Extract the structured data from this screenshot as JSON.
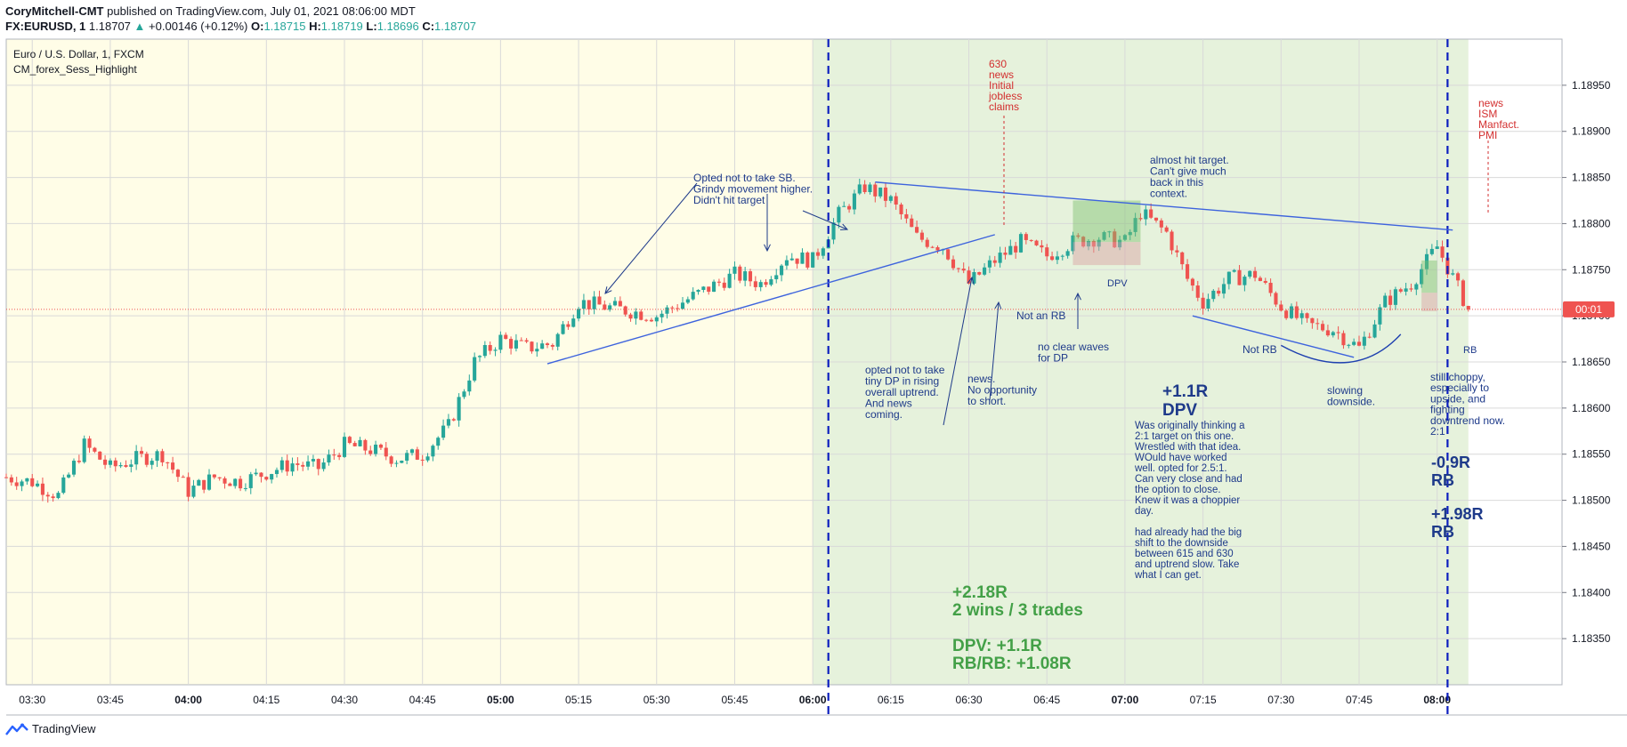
{
  "header": {
    "publisher": "CoryMitchell-CMT",
    "published_text": "published on TradingView.com, July 01, 2021 08:06:00 MDT",
    "symbol": "FX:EURUSD, 1",
    "last": "1.18707",
    "change": "+0.00146 (+0.12%)",
    "o_label": "O:",
    "o": "1.18715",
    "h_label": "H:",
    "h": "1.18719",
    "l_label": "L:",
    "l": "1.18696",
    "c_label": "C:",
    "c": "1.18707"
  },
  "legend": {
    "title": "Euro / U.S. Dollar, 1, FXCM",
    "indicator": "CM_forex_Sess_Highlight"
  },
  "footer": {
    "brand": "TradingView"
  },
  "colors": {
    "up": "#26a69a",
    "down": "#ef5350",
    "bg_pre": "#fffde7",
    "bg_session": "#e6f2dc",
    "annotation": "#1e3a8a",
    "red_note": "#d32f2f",
    "green_note": "#43a047"
  },
  "chart_data": {
    "type": "candlestick",
    "symbol": "EURUSD",
    "interval": "1m",
    "x_range": [
      "03:25",
      "08:24"
    ],
    "ylim": [
      1.183,
      1.19
    ],
    "y_ticks": [
      "1.18350",
      "1.18400",
      "1.18450",
      "1.18500",
      "1.18550",
      "1.18600",
      "1.18650",
      "1.18700",
      "1.18750",
      "1.18800",
      "1.18850",
      "1.18900",
      "1.18950"
    ],
    "x_ticks": [
      "03:30",
      "03:45",
      "04:00",
      "04:15",
      "04:30",
      "04:45",
      "05:00",
      "05:15",
      "05:30",
      "05:45",
      "06:00",
      "06:15",
      "06:30",
      "06:45",
      "07:00",
      "07:15",
      "07:30",
      "07:45",
      "08:00"
    ],
    "last_price": 1.18707,
    "countdown": "00:01",
    "session_start": "06:00",
    "session_end": "08:06",
    "dashed_vlines": [
      "06:03",
      "08:02"
    ],
    "price_path": [
      [
        "03:25",
        1.18525
      ],
      [
        "03:30",
        1.1852
      ],
      [
        "03:35",
        1.18505
      ],
      [
        "03:40",
        1.1856
      ],
      [
        "03:45",
        1.18535
      ],
      [
        "03:50",
        1.18545
      ],
      [
        "03:55",
        1.1855
      ],
      [
        "04:00",
        1.1851
      ],
      [
        "04:05",
        1.18525
      ],
      [
        "04:10",
        1.1852
      ],
      [
        "04:15",
        1.1853
      ],
      [
        "04:20",
        1.1854
      ],
      [
        "04:25",
        1.18535
      ],
      [
        "04:30",
        1.1856
      ],
      [
        "04:35",
        1.18555
      ],
      [
        "04:40",
        1.18545
      ],
      [
        "04:45",
        1.1855
      ],
      [
        "04:50",
        1.1858
      ],
      [
        "04:55",
        1.1865
      ],
      [
        "05:00",
        1.18675
      ],
      [
        "05:05",
        1.18665
      ],
      [
        "05:10",
        1.1867
      ],
      [
        "05:15",
        1.18715
      ],
      [
        "05:20",
        1.1871
      ],
      [
        "05:25",
        1.18705
      ],
      [
        "05:30",
        1.187
      ],
      [
        "05:35",
        1.18715
      ],
      [
        "05:40",
        1.1873
      ],
      [
        "05:45",
        1.18745
      ],
      [
        "05:50",
        1.18735
      ],
      [
        "05:55",
        1.18765
      ],
      [
        "06:00",
        1.1876
      ],
      [
        "06:05",
        1.1881
      ],
      [
        "06:10",
        1.1884
      ],
      [
        "06:15",
        1.18825
      ],
      [
        "06:20",
        1.18785
      ],
      [
        "06:25",
        1.18775
      ],
      [
        "06:30",
        1.18735
      ],
      [
        "06:35",
        1.1876
      ],
      [
        "06:40",
        1.1878
      ],
      [
        "06:45",
        1.18765
      ],
      [
        "06:50",
        1.1878
      ],
      [
        "06:55",
        1.18785
      ],
      [
        "07:00",
        1.1878
      ],
      [
        "07:03",
        1.18812
      ],
      [
        "07:08",
        1.1879
      ],
      [
        "07:12",
        1.1874
      ],
      [
        "07:15",
        1.18715
      ],
      [
        "07:20",
        1.1874
      ],
      [
        "07:25",
        1.18745
      ],
      [
        "07:30",
        1.1871
      ],
      [
        "07:35",
        1.1869
      ],
      [
        "07:40",
        1.18685
      ],
      [
        "07:45",
        1.18665
      ],
      [
        "07:50",
        1.18715
      ],
      [
        "07:55",
        1.18735
      ],
      [
        "08:00",
        1.18775
      ],
      [
        "08:04",
        1.1873
      ],
      [
        "08:06",
        1.18707
      ]
    ],
    "trendlines": [
      {
        "from": [
          "05:09",
          1.18648
        ],
        "to": [
          "06:35",
          1.18788
        ]
      },
      {
        "from": [
          "06:12",
          1.18845
        ],
        "to": [
          "08:03",
          1.18793
        ]
      },
      {
        "from": [
          "07:13",
          1.187
        ],
        "to": [
          "07:44",
          1.18655
        ]
      }
    ],
    "annotations": {
      "opted_not_sb": [
        "Opted not to take SB.",
        "Grindy movement higher.",
        "Didn't hit target"
      ],
      "news630": [
        "630",
        "news",
        "Initial",
        "jobless",
        "claims"
      ],
      "almost_hit": [
        "almost hit target.",
        "Can't give much",
        "back in this",
        "context."
      ],
      "news_ism": [
        "news",
        "ISM",
        "Manfact.",
        "PMI"
      ],
      "dpv_label": "DPV",
      "not_an_rb": "Not an RB",
      "no_clear": [
        "no clear waves",
        "for DP"
      ],
      "not_rb": "Not RB",
      "rb_label": "RB",
      "slowing": [
        "slowing",
        "downside."
      ],
      "opted_tiny_dp": [
        "opted not to take",
        "tiny DP in rising",
        "overall uptrend.",
        "And news",
        "coming."
      ],
      "news_no_opp": [
        "news.",
        "No opportunity",
        "to short."
      ],
      "dpv_result": [
        "+1.1R",
        "DPV"
      ],
      "dpv_notes": [
        "Was originally thinking a",
        "2:1 target on this one.",
        "Wrestled with that idea.",
        "WOuld have worked",
        "well. opted for 2.5:1.",
        "Can very close and had",
        "the option to close.",
        "Knew it was a choppier",
        "day.",
        "",
        "had already had the big",
        "shift to the downside",
        "between 615 and 630",
        "and uptrend slow. Take",
        "what I can get."
      ],
      "still_choppy": [
        "still choppy,",
        "especially to",
        "upside, and",
        "fighting",
        "downtrend now.",
        "2:1"
      ],
      "rb_loss": [
        "-0.9R",
        "RB"
      ],
      "rb_win": [
        "+1.98R",
        "RB"
      ],
      "summary": [
        "+2.18R",
        "2 wins / 3 trades",
        "",
        "DPV: +1.1R",
        "RB/RB: +1.08R"
      ]
    }
  }
}
